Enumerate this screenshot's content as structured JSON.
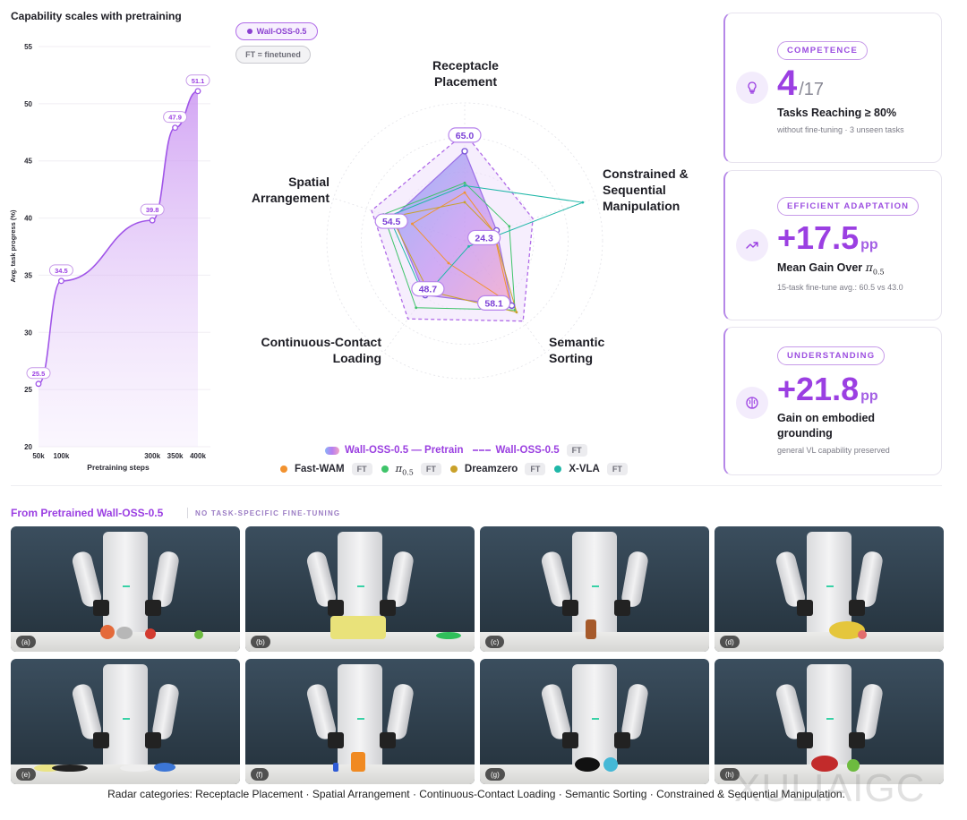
{
  "line_chart_title": "Capability scales with pretraining",
  "radar_pills": {
    "model": "Wall-OSS-0.5",
    "ft_note": "FT = finetuned"
  },
  "radar_legend": {
    "pretrain": "Wall-OSS-0.5 — Pretrain",
    "finetuned": "Wall-OSS-0.5",
    "ft": "FT",
    "fastwam": "Fast-WAM",
    "pi_symbol": "π",
    "pi_sub": "0.5",
    "dreamzero": "Dreamzero",
    "xvla": "X-VLA"
  },
  "cards": [
    {
      "badge": "COMPETENCE",
      "big": "4",
      "denom": "/17",
      "sub": "Tasks Reaching ≥ 80%",
      "note": "without fine-tuning · 3 unseen tasks",
      "icon": "lightbulb-icon"
    },
    {
      "badge": "EFFICIENT ADAPTATION",
      "big": "+17.5",
      "unit": "pp",
      "sub_prefix": "Mean Gain Over ",
      "pi_symbol": "π",
      "pi_sub": "0.5",
      "note": "15-task fine-tune avg.: 60.5 vs 43.0",
      "icon": "trend-up-icon"
    },
    {
      "badge": "UNDERSTANDING",
      "big": "+21.8",
      "unit": "pp",
      "sub": "Gain on embodied grounding",
      "note": "general VL capability preserved",
      "icon": "brain-icon"
    }
  ],
  "bottom": {
    "title": "From Pretrained Wall-OSS-0.5",
    "tag": "NO TASK-SPECIFIC FINE-TUNING",
    "photos": [
      "(a)",
      "(b)",
      "(c)",
      "(d)",
      "(e)",
      "(f)",
      "(g)",
      "(h)"
    ]
  },
  "caption": "Radar categories: Receptacle Placement · Spatial Arrangement · Continuous-Contact Loading · Semantic Sorting · Constrained & Sequential Manipulation.",
  "watermark": "XULIAIGC",
  "colors": {
    "accent": "#9b3fe2",
    "fastwam": "#f2922f",
    "pi05": "#3fc46a",
    "dreamzero": "#c9a12a",
    "xvla": "#1fb7a8"
  },
  "chart_data": [
    {
      "type": "area",
      "title": "Capability scales with pretraining",
      "xlabel": "Pretraining steps",
      "ylabel": "Avg. task progress (%)",
      "x": [
        "50k",
        "100k",
        "300k",
        "350k",
        "400k"
      ],
      "ylim": [
        20,
        55
      ],
      "yticks": [
        20,
        25,
        30,
        35,
        40,
        45,
        50,
        55
      ],
      "points": [
        {
          "x": 50,
          "y": 25.5,
          "label": "25.5"
        },
        {
          "x": 100,
          "y": 34.5,
          "label": "34.5"
        },
        {
          "x": 300,
          "y": 39.8,
          "label": "39.8"
        },
        {
          "x": 350,
          "y": 47.9,
          "label": "47.9"
        },
        {
          "x": 400,
          "y": 51.1,
          "label": "51.1"
        }
      ]
    },
    {
      "type": "radar",
      "axes": [
        "Receptacle Placement",
        "Constrained & Sequential Manipulation",
        "Semantic Sorting",
        "Continuous-Contact Loading",
        "Spatial Arrangement"
      ],
      "max": 100,
      "series": [
        {
          "name": "Wall-OSS-0.5 — Pretrain",
          "values": [
            65.0,
            24.3,
            58.1,
            48.7,
            54.5
          ],
          "labels": [
            "65.0",
            "24.3",
            "58.1",
            "48.7",
            "54.5"
          ]
        },
        {
          "name": "Wall-OSS-0.5",
          "ft": true,
          "values": [
            78,
            52,
            72,
            70,
            71
          ]
        },
        {
          "name": "Fast-WAM",
          "ft": true,
          "values": [
            35,
            22,
            56,
            20,
            40
          ]
        },
        {
          "name": "π0.5",
          "ft": true,
          "values": [
            42,
            34,
            62,
            60,
            62
          ]
        },
        {
          "name": "Dreamzero",
          "ft": true,
          "values": [
            28,
            22,
            64,
            45,
            56
          ]
        },
        {
          "name": "X-VLA",
          "ft": true,
          "values": [
            40,
            90,
            5,
            50,
            58
          ]
        }
      ]
    }
  ]
}
